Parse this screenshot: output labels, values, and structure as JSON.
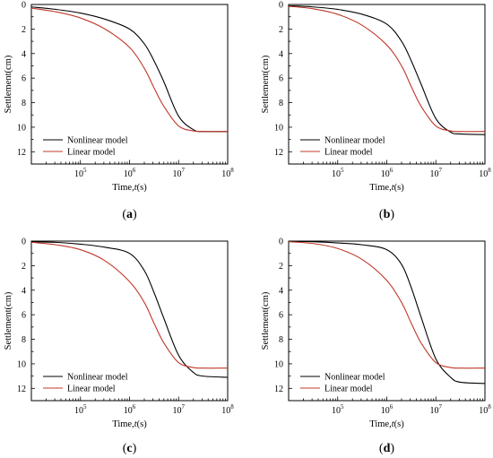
{
  "chart_data": [
    {
      "panel_label": "a",
      "type": "line",
      "xlabel": "Time,t(s)",
      "ylabel": "Settlement(cm)",
      "xscale": "log",
      "xlim": [
        10000,
        100000000
      ],
      "ylim": [
        0,
        13
      ],
      "y_inverted": true,
      "xticks": [
        100000,
        1000000,
        10000000,
        100000000
      ],
      "xtick_labels": [
        {
          "base": "10",
          "exp": "5"
        },
        {
          "base": "10",
          "exp": "6"
        },
        {
          "base": "10",
          "exp": "7"
        },
        {
          "base": "10",
          "exp": "8"
        }
      ],
      "yticks": [
        0,
        2,
        4,
        6,
        8,
        10,
        12
      ],
      "ytick_labels": [
        "0",
        "2",
        "4",
        "6",
        "8",
        "10",
        "12"
      ],
      "legend_position": "bottom-left",
      "series": [
        {
          "name": "Nonlinear model",
          "color": "#000000",
          "x": [
            10000,
            31623,
            100000,
            316228,
            1000000,
            2000000,
            3162278,
            5011872,
            10000000,
            20000000,
            31622777,
            100000000
          ],
          "y": [
            0.2,
            0.4,
            0.7,
            1.2,
            2.0,
            3.2,
            4.6,
            6.3,
            9.1,
            10.2,
            10.35,
            10.35
          ]
        },
        {
          "name": "Linear model",
          "color": "#c0392b",
          "x": [
            10000,
            31623,
            100000,
            316228,
            1000000,
            2000000,
            3162278,
            5011872,
            10000000,
            20000000,
            31622777,
            100000000
          ],
          "y": [
            0.3,
            0.6,
            1.1,
            2.0,
            3.5,
            5.2,
            6.8,
            8.3,
            9.9,
            10.3,
            10.35,
            10.35
          ]
        }
      ]
    },
    {
      "panel_label": "b",
      "type": "line",
      "xlabel": "Time,t(s)",
      "ylabel": "Settlement(cm)",
      "xscale": "log",
      "xlim": [
        10000,
        100000000
      ],
      "ylim": [
        0,
        13
      ],
      "y_inverted": true,
      "xticks": [
        100000,
        1000000,
        10000000,
        100000000
      ],
      "xtick_labels": [
        {
          "base": "10",
          "exp": "5"
        },
        {
          "base": "10",
          "exp": "6"
        },
        {
          "base": "10",
          "exp": "7"
        },
        {
          "base": "10",
          "exp": "8"
        }
      ],
      "yticks": [
        0,
        2,
        4,
        6,
        8,
        10,
        12
      ],
      "ytick_labels": [
        "0",
        "2",
        "4",
        "6",
        "8",
        "10",
        "12"
      ],
      "legend_position": "bottom-left",
      "series": [
        {
          "name": "Nonlinear model",
          "color": "#000000",
          "x": [
            10000,
            31623,
            100000,
            316228,
            1000000,
            2000000,
            3162278,
            5011872,
            10000000,
            20000000,
            31622777,
            100000000
          ],
          "y": [
            0.1,
            0.2,
            0.4,
            0.8,
            1.6,
            3.0,
            4.6,
            6.5,
            9.3,
            10.4,
            10.55,
            10.6
          ]
        },
        {
          "name": "Linear model",
          "color": "#c0392b",
          "x": [
            10000,
            31623,
            100000,
            316228,
            1000000,
            2000000,
            3162278,
            5011872,
            10000000,
            20000000,
            31622777,
            100000000
          ],
          "y": [
            0.15,
            0.35,
            0.8,
            1.7,
            3.3,
            5.0,
            6.7,
            8.3,
            9.9,
            10.3,
            10.35,
            10.35
          ]
        }
      ]
    },
    {
      "panel_label": "c",
      "type": "line",
      "xlabel": "Time,t(s)",
      "ylabel": "Settlement(cm)",
      "xscale": "log",
      "xlim": [
        10000,
        100000000
      ],
      "ylim": [
        0,
        13
      ],
      "y_inverted": true,
      "xticks": [
        100000,
        1000000,
        10000000,
        100000000
      ],
      "xtick_labels": [
        {
          "base": "10",
          "exp": "5"
        },
        {
          "base": "10",
          "exp": "6"
        },
        {
          "base": "10",
          "exp": "7"
        },
        {
          "base": "10",
          "exp": "8"
        }
      ],
      "yticks": [
        0,
        2,
        4,
        6,
        8,
        10,
        12
      ],
      "ytick_labels": [
        "0",
        "2",
        "4",
        "6",
        "8",
        "10",
        "12"
      ],
      "legend_position": "bottom-left",
      "series": [
        {
          "name": "Nonlinear model",
          "color": "#000000",
          "x": [
            10000,
            31623,
            100000,
            316228,
            1000000,
            2000000,
            3162278,
            5011872,
            10000000,
            20000000,
            31622777,
            100000000
          ],
          "y": [
            0.05,
            0.1,
            0.25,
            0.5,
            1.0,
            2.4,
            4.2,
            6.3,
            9.3,
            10.7,
            11.0,
            11.1
          ]
        },
        {
          "name": "Linear model",
          "color": "#c0392b",
          "x": [
            10000,
            31623,
            100000,
            316228,
            1000000,
            2000000,
            3162278,
            5011872,
            10000000,
            20000000,
            31622777,
            100000000
          ],
          "y": [
            0.1,
            0.3,
            0.7,
            1.6,
            3.3,
            5.0,
            6.7,
            8.3,
            9.9,
            10.3,
            10.35,
            10.35
          ]
        }
      ]
    },
    {
      "panel_label": "d",
      "type": "line",
      "xlabel": "Time,t(s)",
      "ylabel": "Settlement(cm)",
      "xscale": "log",
      "xlim": [
        10000,
        100000000
      ],
      "ylim": [
        0,
        13
      ],
      "y_inverted": true,
      "xticks": [
        100000,
        1000000,
        10000000,
        100000000
      ],
      "xtick_labels": [
        {
          "base": "10",
          "exp": "5"
        },
        {
          "base": "10",
          "exp": "6"
        },
        {
          "base": "10",
          "exp": "7"
        },
        {
          "base": "10",
          "exp": "8"
        }
      ],
      "yticks": [
        0,
        2,
        4,
        6,
        8,
        10,
        12
      ],
      "ytick_labels": [
        "0",
        "2",
        "4",
        "6",
        "8",
        "10",
        "12"
      ],
      "legend_position": "bottom-left",
      "series": [
        {
          "name": "Nonlinear model",
          "color": "#000000",
          "x": [
            10000,
            31623,
            100000,
            316228,
            1000000,
            2000000,
            3162278,
            5011872,
            10000000,
            20000000,
            31622777,
            100000000
          ],
          "y": [
            0.02,
            0.05,
            0.15,
            0.3,
            0.7,
            1.9,
            3.8,
            6.2,
            9.6,
            11.1,
            11.5,
            11.6
          ]
        },
        {
          "name": "Linear model",
          "color": "#c0392b",
          "x": [
            10000,
            31623,
            100000,
            316228,
            1000000,
            2000000,
            3162278,
            5011872,
            10000000,
            20000000,
            31622777,
            100000000
          ],
          "y": [
            0.05,
            0.2,
            0.6,
            1.5,
            3.2,
            5.0,
            6.7,
            8.3,
            9.9,
            10.3,
            10.35,
            10.35
          ]
        }
      ]
    }
  ]
}
